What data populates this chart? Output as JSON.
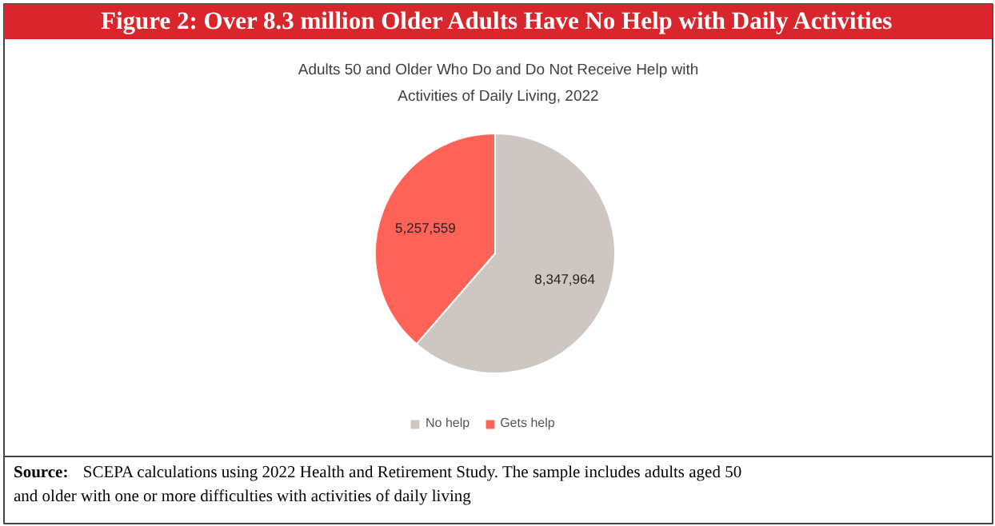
{
  "chart_data": {
    "type": "pie",
    "title": "Figure 2: Over 8.3 million Older Adults Have No Help with Daily Activities",
    "subtitle": "Adults 50 and Older Who Do and Do Not Receive Help with Activities of Daily Living, 2022",
    "categories": [
      "No help",
      "Gets help"
    ],
    "values": [
      8347964,
      5257559
    ],
    "colors": [
      "#cec7c1",
      "#ff6357"
    ],
    "value_labels": [
      "8,347,964",
      "5,257,559"
    ],
    "legend": "bottom",
    "annotations": [
      "Source:",
      "SCEPA calculations using 2022 Health and Retirement Study. The sample includes adults aged 50 and older with one or more difficulties with activities of daily living"
    ]
  }
}
